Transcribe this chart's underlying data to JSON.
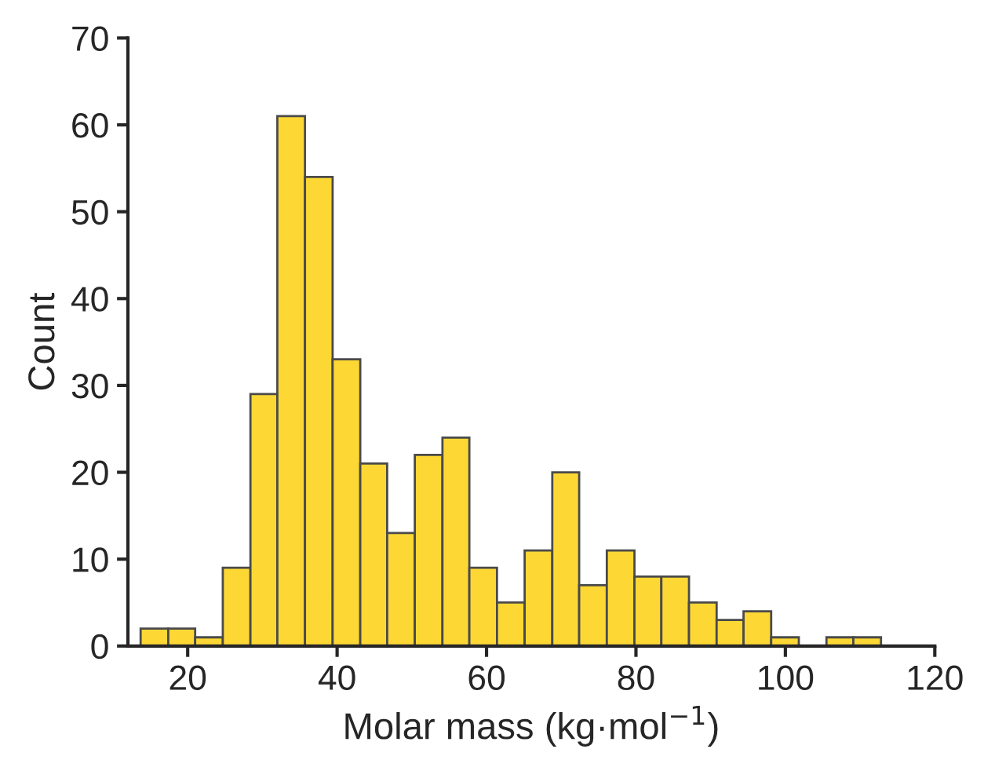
{
  "chart_data": {
    "type": "histogram",
    "xlabel": "Molar mass (kg·mol$^{−1}$)",
    "ylabel": "Count",
    "bins": [
      13.7,
      17.4,
      21.0,
      24.7,
      28.4,
      32.0,
      35.7,
      39.4,
      43.1,
      46.7,
      50.4,
      54.1,
      57.7,
      61.4,
      65.1,
      68.8,
      72.4,
      76.1,
      79.8,
      83.4,
      87.1,
      90.8,
      94.4,
      98.1,
      101.8,
      105.5,
      109.1,
      112.8
    ],
    "values": [
      2,
      2,
      1,
      9,
      29,
      61,
      54,
      33,
      21,
      13,
      22,
      24,
      9,
      5,
      11,
      20,
      7,
      11,
      8,
      8,
      5,
      3,
      4,
      1,
      0,
      1,
      1
    ],
    "color": "#fdd835",
    "xlim": [
      12,
      120
    ],
    "xticks": [
      20,
      40,
      60,
      80,
      100,
      120
    ],
    "ylim": [
      0,
      70
    ],
    "yticks": [
      0,
      10,
      20,
      30,
      40,
      50,
      60,
      70
    ],
    "grid": false
  }
}
